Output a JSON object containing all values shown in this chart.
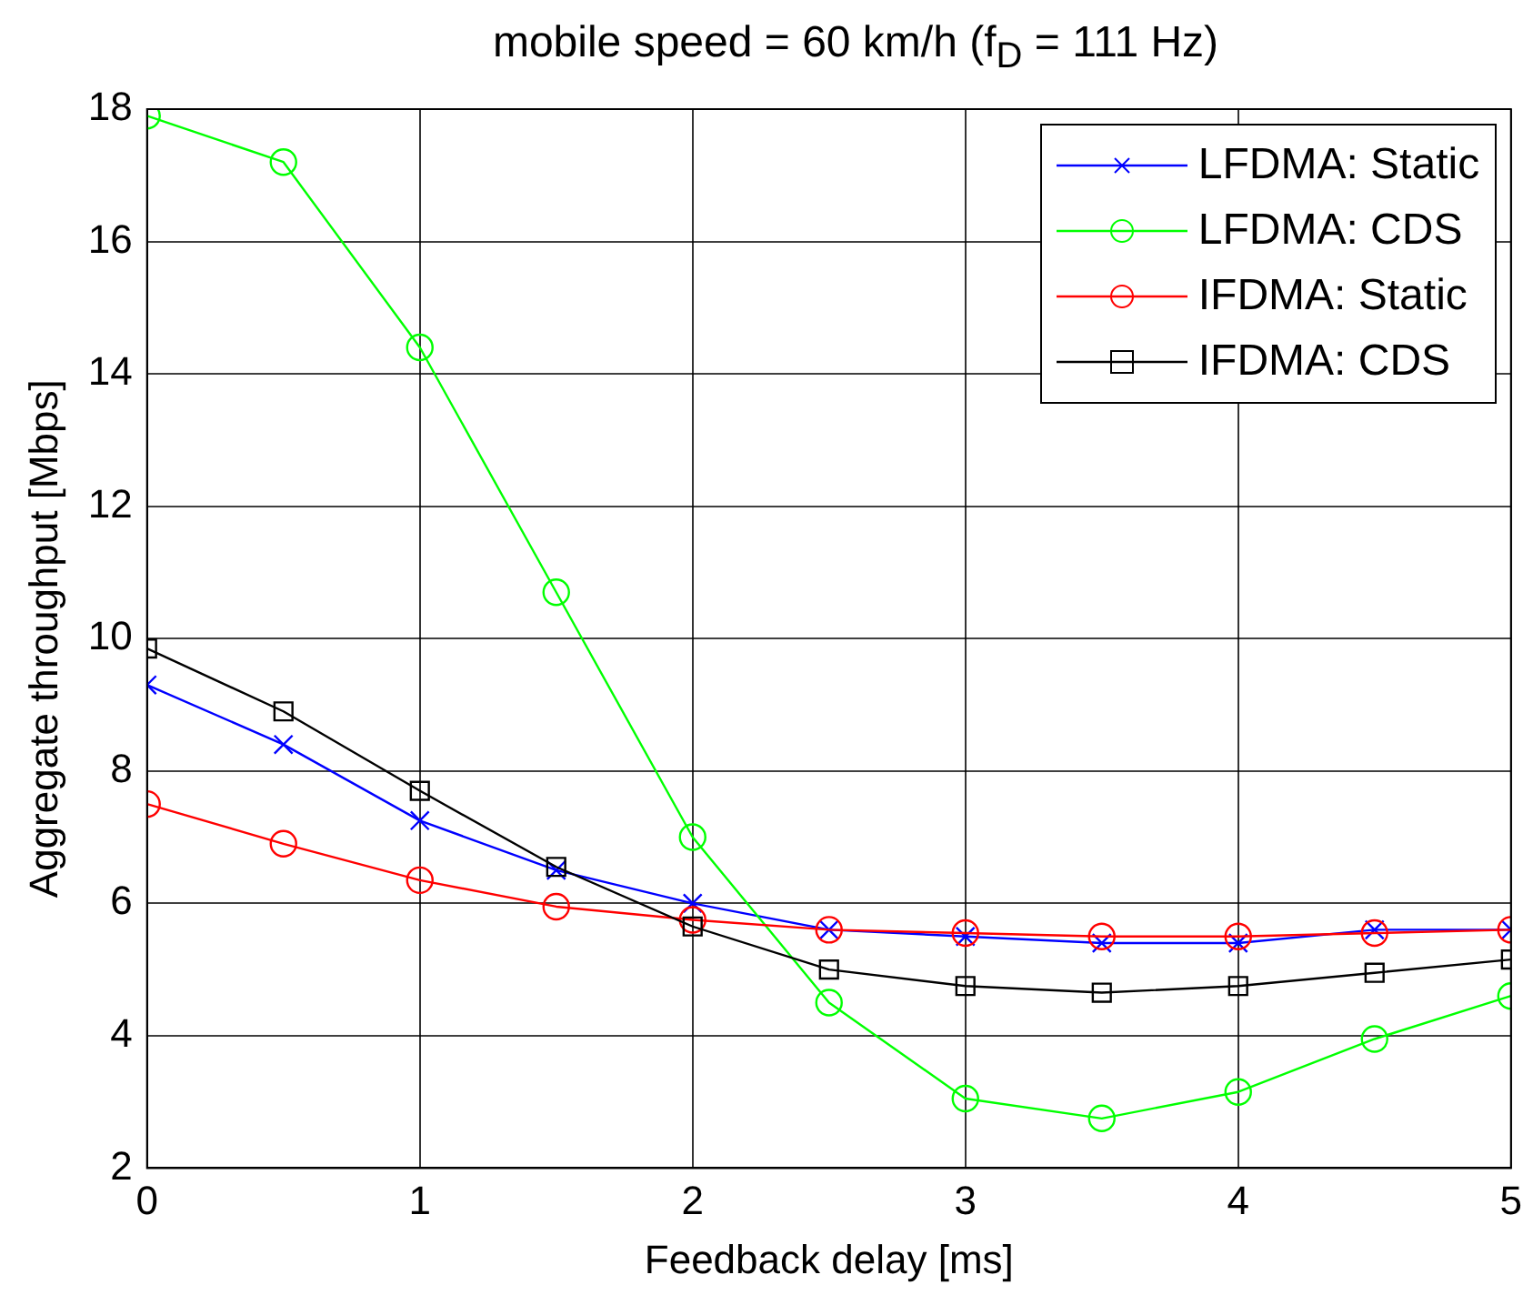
{
  "chart_data": {
    "type": "line",
    "title": "mobile speed = 60 km/h (f$_{D}$ = 111 Hz)",
    "xlabel": "Feedback delay [ms]",
    "ylabel": "Aggregate throughput [Mbps]",
    "x": [
      0,
      0.5,
      1,
      1.5,
      2,
      2.5,
      3,
      3.5,
      4,
      4.5,
      5
    ],
    "series": [
      {
        "name": "LFDMA: Static",
        "color": "#0000ff",
        "marker": "cross",
        "values": [
          9.3,
          8.4,
          7.25,
          6.5,
          6.0,
          5.6,
          5.5,
          5.4,
          5.4,
          5.6,
          5.6
        ]
      },
      {
        "name": "LFDMA: CDS",
        "color": "#00ff00",
        "marker": "circle",
        "values": [
          17.9,
          17.2,
          14.4,
          10.7,
          7.0,
          4.5,
          3.05,
          2.75,
          3.15,
          3.95,
          4.6
        ]
      },
      {
        "name": "IFDMA: Static",
        "color": "#ff0000",
        "marker": "circle",
        "values": [
          7.5,
          6.9,
          6.35,
          5.95,
          5.75,
          5.6,
          5.55,
          5.5,
          5.5,
          5.55,
          5.6
        ]
      },
      {
        "name": "IFDMA: CDS",
        "color": "#000000",
        "marker": "square",
        "values": [
          9.85,
          8.9,
          7.7,
          6.55,
          5.65,
          5.0,
          4.75,
          4.65,
          4.75,
          4.95,
          5.15
        ]
      }
    ],
    "xlim": [
      0,
      5
    ],
    "xticks": [
      0,
      1,
      2,
      3,
      4,
      5
    ],
    "ylim": [
      2,
      18
    ],
    "yticks": [
      2,
      4,
      6,
      8,
      10,
      12,
      14,
      16,
      18
    ],
    "grid": true,
    "legend": "top right",
    "line_style": "solid"
  }
}
